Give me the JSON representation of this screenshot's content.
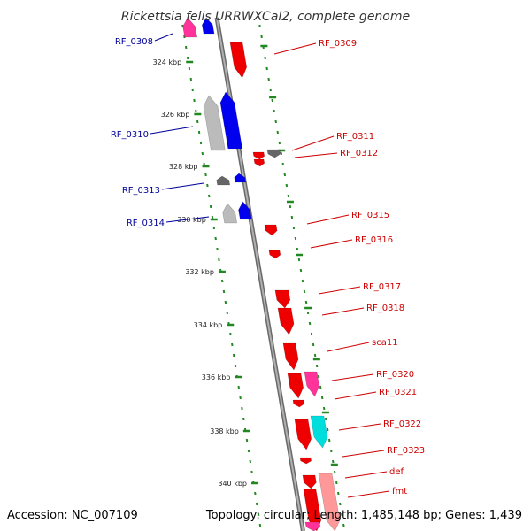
{
  "title": "Rickettsia felis URRWXCal2, complete genome",
  "footer": {
    "accession": "Accession: NC_007109",
    "summary": "Topology: circular; Length: 1,485,148 bp; Genes: 1,439"
  },
  "colors": {
    "backbone": "#8c8c8c",
    "forward_gene": "#ee0000",
    "reverse_gene": "#0000ee",
    "pseudo_gray": "#bbbbbb",
    "dark_gray": "#666666",
    "pink": "#ff3399",
    "cyan": "#00dddd",
    "light_red": "#ff9999",
    "ruler": "#228822",
    "label_forward": "#cc0000",
    "label_reverse": "#000099"
  },
  "ticks": [
    "324 kbp",
    "326 kbp",
    "328 kbp",
    "330 kbp",
    "332 kbp",
    "334 kbp",
    "336 kbp",
    "338 kbp",
    "340 kbp"
  ],
  "reverse_labels": [
    "RF_0308",
    "RF_0310",
    "RF_0313",
    "RF_0314"
  ],
  "forward_labels": [
    "RF_0309",
    "RF_0311",
    "RF_0312",
    "RF_0315",
    "RF_0316",
    "RF_0317",
    "RF_0318",
    "sca11",
    "RF_0320",
    "RF_0321",
    "RF_0322",
    "RF_0323",
    "def",
    "fmt"
  ]
}
